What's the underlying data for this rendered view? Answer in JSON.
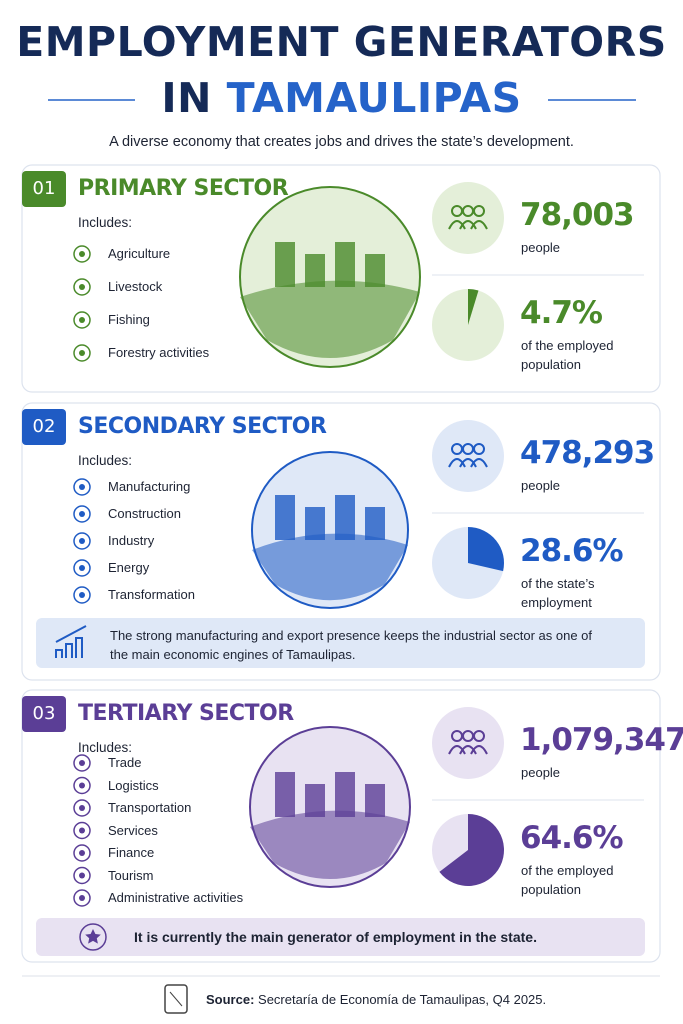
{
  "header": {
    "title_line1": "EMPLOYMENT GENERATORS",
    "title_line2_a": "IN",
    "title_line2_b": "TAMAULIPAS",
    "subtitle": "A diverse economy that creates jobs and drives the state’s development."
  },
  "sectors": [
    {
      "number": "01",
      "title": "PRIMARY SECTOR",
      "includes_label": "Includes:",
      "items": [
        "Agriculture",
        "Livestock",
        "Fishing",
        "Forestry activities"
      ],
      "people": "78,003",
      "people_label": "people",
      "share": {
        "value": 4.7,
        "label": "4.7%"
      },
      "share_caption": "of the employed population",
      "color": "#4a8a2a",
      "light": "#e4efd9"
    },
    {
      "number": "02",
      "title": "SECONDARY SECTOR",
      "includes_label": "Includes:",
      "items": [
        "Manufacturing",
        "Construction",
        "Industry",
        "Energy",
        "Transformation"
      ],
      "people": "478,293",
      "people_label": "people",
      "share": {
        "value": 28.6,
        "label": "28.6%"
      },
      "share_caption": "of the state’s employment",
      "note": "The strong manufacturing and export presence keeps the industrial sector as one of the main economic engines of Tamaulipas.",
      "color": "#1f5bc4",
      "light": "#dfe8f7"
    },
    {
      "number": "03",
      "title": "TERTIARY SECTOR",
      "includes_label": "Includes:",
      "items": [
        "Trade",
        "Logistics",
        "Transportation",
        "Services",
        "Finance",
        "Tourism",
        "Administrative activities"
      ],
      "people": "1,079,347",
      "people_label": "people",
      "share": {
        "value": 64.6,
        "label": "64.6%"
      },
      "share_caption": "of the employed population",
      "note": "It is currently the main generator of employment in the state.",
      "color": "#5b3e96",
      "light": "#e8e2f2"
    }
  ],
  "footer": {
    "source_label": "Source:",
    "source_text": "Secretaría de Economía de Tamaulipas, Q4 2025."
  }
}
